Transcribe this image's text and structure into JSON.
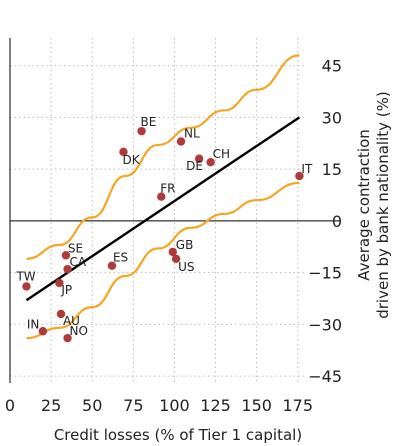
{
  "chart_data": {
    "type": "scatter",
    "xlabel": "Credit losses (% of Tier 1 capital)",
    "ylabel": [
      "Average contraction",
      "driven by bank nationality (%)"
    ],
    "xlim": [
      0,
      180
    ],
    "ylim": [
      -47,
      53
    ],
    "x_ticks": [
      0,
      25,
      50,
      75,
      100,
      125,
      150,
      175
    ],
    "y_ticks": [
      45,
      30,
      15,
      0,
      -15,
      -30,
      -45
    ],
    "grid": "vertical dotted",
    "colors": {
      "points": "#b03a3a",
      "fit": "#000000",
      "band": "#f5a623",
      "grid": "#bcbcbc"
    },
    "points": [
      {
        "label": "BE",
        "x": 80,
        "y": 26
      },
      {
        "label": "NL",
        "x": 104,
        "y": 23
      },
      {
        "label": "DK",
        "x": 69,
        "y": 20
      },
      {
        "label": "CH",
        "x": 122,
        "y": 17
      },
      {
        "label": "DE",
        "x": 115,
        "y": 18
      },
      {
        "label": "IT",
        "x": 176,
        "y": 13
      },
      {
        "label": "FR",
        "x": 92,
        "y": 7
      },
      {
        "label": "SE",
        "x": 34,
        "y": -10
      },
      {
        "label": "ES",
        "x": 62,
        "y": -13
      },
      {
        "label": "GB",
        "x": 99,
        "y": -9
      },
      {
        "label": "US",
        "x": 101,
        "y": -11
      },
      {
        "label": "CA",
        "x": 35,
        "y": -14
      },
      {
        "label": "TW",
        "x": 10,
        "y": -19
      },
      {
        "label": "JP",
        "x": 30,
        "y": -18
      },
      {
        "label": "AU",
        "x": 31,
        "y": -27
      },
      {
        "label": "IN",
        "x": 20,
        "y": -32
      },
      {
        "label": "NO",
        "x": 35,
        "y": -34
      }
    ],
    "fit_line": {
      "x": [
        10,
        176
      ],
      "y": [
        -23,
        30
      ]
    },
    "upper_band": {
      "x": [
        10,
        30,
        50,
        70,
        90,
        110,
        130,
        150,
        176
      ],
      "y": [
        -11,
        -7,
        1,
        13,
        22,
        27,
        32,
        38,
        48
      ]
    },
    "lower_band": {
      "x": [
        10,
        30,
        50,
        70,
        90,
        110,
        130,
        150,
        176
      ],
      "y": [
        -34,
        -31,
        -25,
        -16,
        -8,
        -2,
        2,
        6,
        11
      ]
    }
  }
}
